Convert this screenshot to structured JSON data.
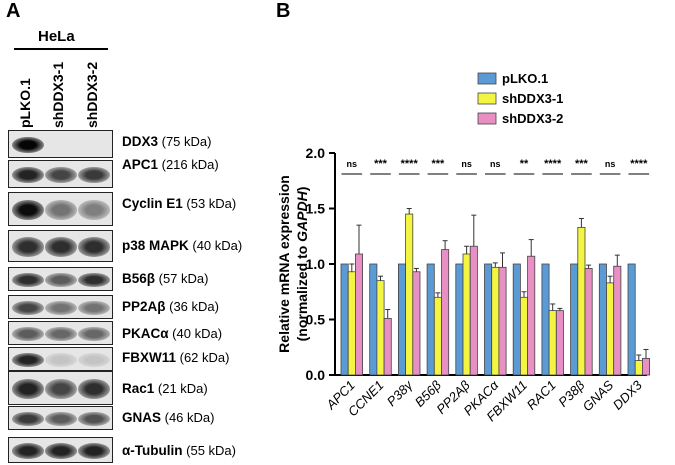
{
  "panels": {
    "a": "A",
    "b": "B"
  },
  "blot": {
    "cell_line": "HeLa",
    "lanes": [
      "pLKO.1",
      "shDDX3-1",
      "shDDX3-2"
    ],
    "rows": [
      {
        "protein": "DDX3",
        "size": "(75 kDa)"
      },
      {
        "protein": "APC1",
        "size": "(216 kDa)"
      },
      {
        "protein": "Cyclin E1",
        "size": "(53 kDa)"
      },
      {
        "protein": "p38 MAPK",
        "size": "(40 kDa)"
      },
      {
        "protein": "B56β",
        "size": "(57 kDa)"
      },
      {
        "protein": "PP2Aβ",
        "size": "(36 kDa)"
      },
      {
        "protein": "PKACα",
        "size": "(40 kDa)"
      },
      {
        "protein": "FBXW11",
        "size": "(62 kDa)"
      },
      {
        "protein": "Rac1",
        "size": "(21 kDa)"
      },
      {
        "protein": "GNAS",
        "size": "(46 kDa)"
      },
      {
        "protein": "α-Tubulin",
        "size": "(55 kDa)"
      }
    ]
  },
  "chart_data": {
    "type": "bar",
    "ylabel_line1": "Relative mRNA expression",
    "ylabel_line2_prefix": "(normalized to ",
    "ylabel_line2_gene": "GAPDH",
    "ylabel_line2_suffix": ")",
    "ylim": [
      0,
      2.0
    ],
    "yticks": [
      "0.0",
      "0.5",
      "1.0",
      "1.5",
      "2.0"
    ],
    "ytick_values": [
      0,
      0.5,
      1.0,
      1.5,
      2.0
    ],
    "categories": [
      "APC1",
      "CCNE1",
      "P38γ",
      "B56β",
      "PP2Aβ",
      "PKACα",
      "FBXW11",
      "RAC1",
      "P38β",
      "GNAS",
      "DDX3"
    ],
    "series": [
      {
        "name": "pLKO.1",
        "color": "#5B9BD5",
        "values": [
          1.0,
          1.0,
          1.0,
          1.0,
          1.0,
          1.0,
          1.0,
          1.0,
          1.0,
          1.0,
          1.0
        ],
        "errors": [
          0,
          0,
          0,
          0,
          0,
          0,
          0,
          0,
          0,
          0,
          0
        ]
      },
      {
        "name": "shDDX3-1",
        "color": "#F4F442",
        "values": [
          0.93,
          0.85,
          1.45,
          0.7,
          1.09,
          0.97,
          0.7,
          0.58,
          1.33,
          0.83,
          0.13
        ],
        "errors": [
          0.07,
          0.04,
          0.05,
          0.04,
          0.07,
          0.04,
          0.05,
          0.06,
          0.08,
          0.06,
          0.05
        ]
      },
      {
        "name": "shDDX3-2",
        "color": "#E88FC4",
        "values": [
          1.09,
          0.51,
          0.93,
          1.13,
          1.16,
          0.97,
          1.07,
          0.58,
          0.96,
          0.98,
          0.15
        ],
        "errors": [
          0.26,
          0.08,
          0.03,
          0.08,
          0.28,
          0.13,
          0.15,
          0.02,
          0.03,
          0.1,
          0.08
        ]
      }
    ],
    "significance": [
      "ns",
      "***",
      "****",
      "***",
      "ns",
      "ns",
      "**",
      "****",
      "***",
      "ns",
      "****"
    ],
    "legend_position": "top-right"
  }
}
